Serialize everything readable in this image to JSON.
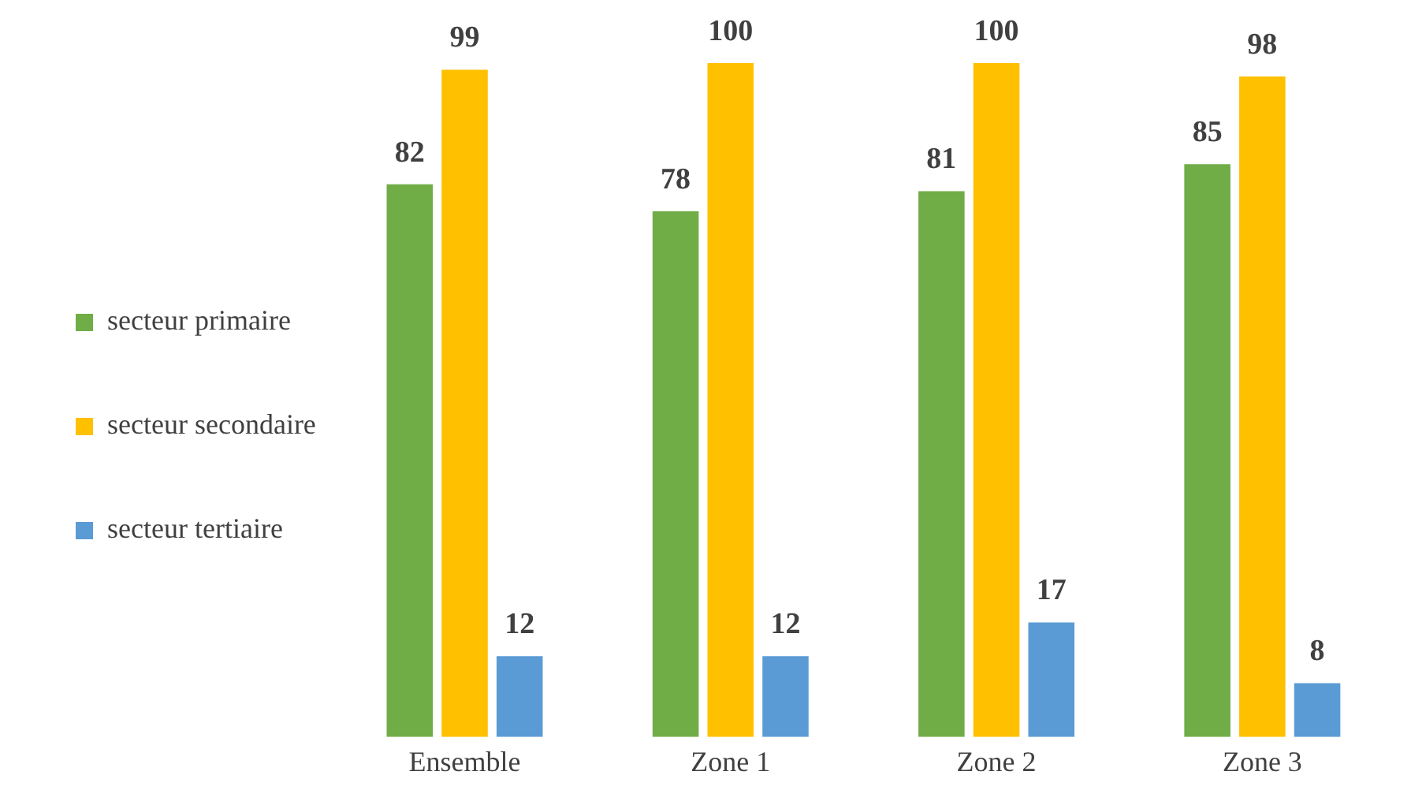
{
  "chart_data": {
    "type": "bar",
    "categories": [
      "Ensemble",
      "Zone 1",
      "Zone 2",
      "Zone 3"
    ],
    "series": [
      {
        "name": "secteur primaire",
        "color": "#70ad47",
        "values": [
          82,
          78,
          81,
          85
        ]
      },
      {
        "name": "secteur secondaire",
        "color": "#ffc000",
        "values": [
          99,
          100,
          100,
          98
        ]
      },
      {
        "name": "secteur tertiaire",
        "color": "#5b9bd5",
        "values": [
          12,
          12,
          17,
          8
        ]
      }
    ],
    "data_labels": true,
    "legend": "left",
    "grid": false,
    "tick_labels": "x"
  }
}
